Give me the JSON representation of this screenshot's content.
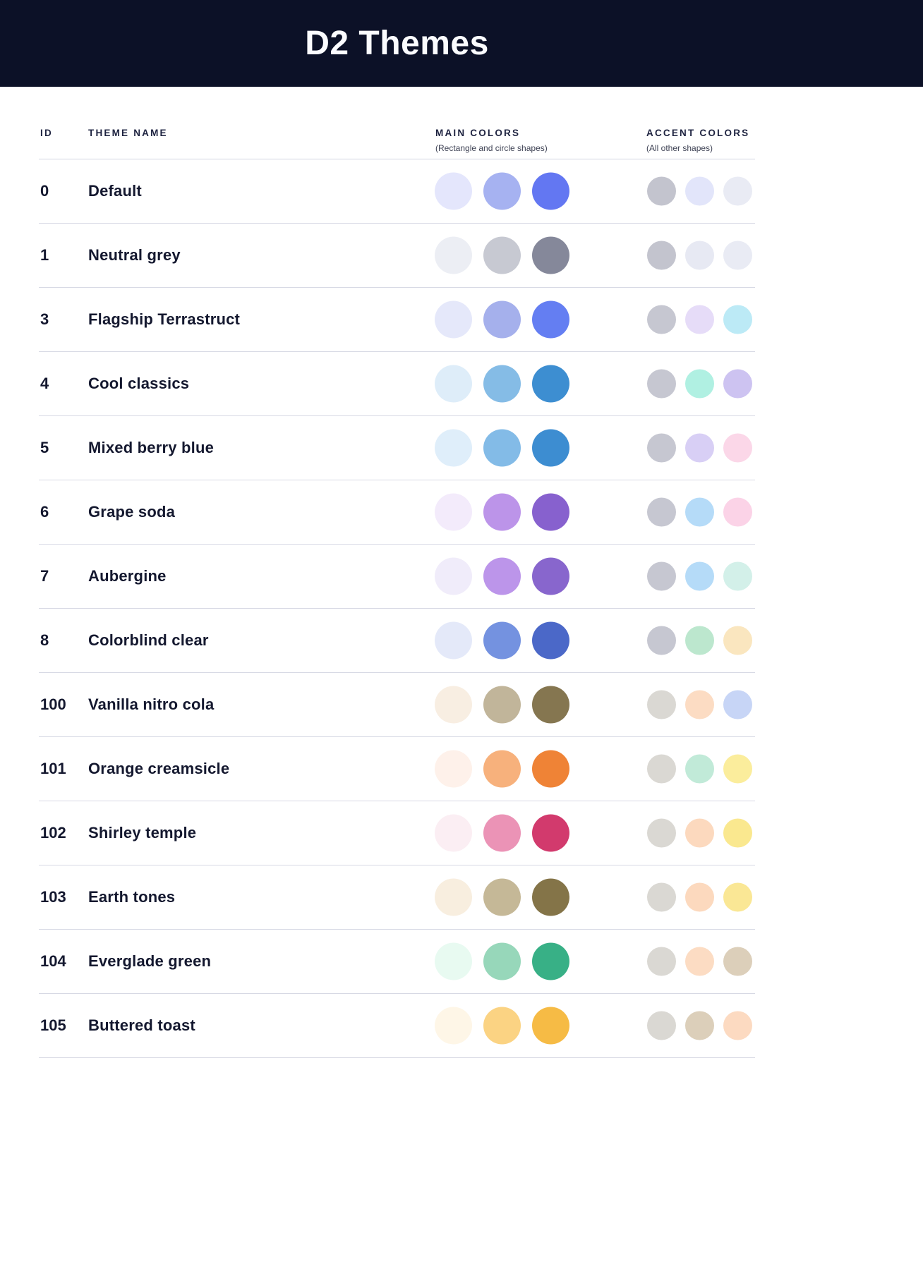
{
  "header": {
    "title": "D2 Themes"
  },
  "table": {
    "columns": {
      "id": "ID",
      "name": "THEME NAME",
      "main": "MAIN COLORS",
      "main_sub": "(Rectangle and circle shapes)",
      "accent": "ACCENT COLORS",
      "accent_sub": "(All other shapes)"
    },
    "rows": [
      {
        "id": "0",
        "name": "Default",
        "main": [
          "#E4E6FC",
          "#A6B2F1",
          "#6377F2"
        ],
        "accent": [
          "#C3C4CE",
          "#E2E5FA",
          "#E9EBF4"
        ]
      },
      {
        "id": "1",
        "name": "Neutral grey",
        "main": [
          "#ECEEF4",
          "#C7C9D2",
          "#85889A"
        ],
        "accent": [
          "#C3C4CE",
          "#E7E9F3",
          "#E9EBF4"
        ]
      },
      {
        "id": "3",
        "name": "Flagship Terrastruct",
        "main": [
          "#E5E8FA",
          "#A5B0EC",
          "#647EF2"
        ],
        "accent": [
          "#C6C7D1",
          "#E6DCF8",
          "#BCEAF6"
        ]
      },
      {
        "id": "4",
        "name": "Cool classics",
        "main": [
          "#DEEDF9",
          "#85BCE6",
          "#3D8ED1"
        ],
        "accent": [
          "#C6C7D1",
          "#B0F0E2",
          "#CDC3F1"
        ]
      },
      {
        "id": "5",
        "name": "Mixed berry blue",
        "main": [
          "#DFEEFA",
          "#83BBE7",
          "#3D8DD1"
        ],
        "accent": [
          "#C6C7D1",
          "#D8CFF5",
          "#FBD7E8"
        ]
      },
      {
        "id": "6",
        "name": "Grape soda",
        "main": [
          "#F3EBFB",
          "#BC94E9",
          "#8761CE"
        ],
        "accent": [
          "#C6C7D1",
          "#B5DBF8",
          "#FBD3E7"
        ]
      },
      {
        "id": "7",
        "name": "Aubergine",
        "main": [
          "#F0ECFA",
          "#BC95EA",
          "#8866CD"
        ],
        "accent": [
          "#C6C7D1",
          "#B5DBF8",
          "#D3F0E9"
        ]
      },
      {
        "id": "8",
        "name": "Colorblind clear",
        "main": [
          "#E4E9F9",
          "#7492E0",
          "#4B68C8"
        ],
        "accent": [
          "#C6C7D1",
          "#BCE7CE",
          "#FAE6BF"
        ]
      },
      {
        "id": "100",
        "name": "Vanilla nitro cola",
        "main": [
          "#F8EEE2",
          "#C1B59A",
          "#857650"
        ],
        "accent": [
          "#DAD8D3",
          "#FCDCC3",
          "#C7D5F6"
        ]
      },
      {
        "id": "101",
        "name": "Orange creamsicle",
        "main": [
          "#FEF1EA",
          "#F7B17C",
          "#EF8336"
        ],
        "accent": [
          "#DAD8D3",
          "#C1EAD8",
          "#FBED9C"
        ]
      },
      {
        "id": "102",
        "name": "Shirley temple",
        "main": [
          "#FBEEF3",
          "#EB93B6",
          "#D23A6D"
        ],
        "accent": [
          "#DAD8D3",
          "#FCD9BE",
          "#FAE88F"
        ]
      },
      {
        "id": "103",
        "name": "Earth tones",
        "main": [
          "#F8EEDF",
          "#C5B897",
          "#847448"
        ],
        "accent": [
          "#DAD8D3",
          "#FCD9BE",
          "#FAE795"
        ]
      },
      {
        "id": "104",
        "name": "Everglade green",
        "main": [
          "#E8FAF1",
          "#97D7BA",
          "#38B086"
        ],
        "accent": [
          "#DAD8D3",
          "#FCDCC3",
          "#DCCFBA"
        ]
      },
      {
        "id": "105",
        "name": "Buttered toast",
        "main": [
          "#FEF6E7",
          "#FBD383",
          "#F6BB45"
        ],
        "accent": [
          "#DAD8D3",
          "#DCCFBA",
          "#FCDAC1"
        ]
      }
    ]
  }
}
